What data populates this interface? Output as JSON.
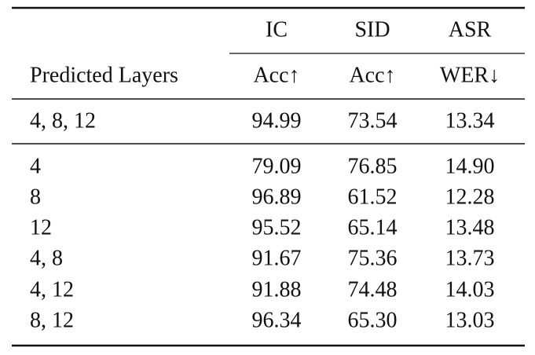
{
  "table": {
    "header": {
      "groups": [
        "IC",
        "SID",
        "ASR"
      ],
      "row_label": "Predicted Layers",
      "metrics": [
        "Acc↑",
        "Acc↑",
        "WER↓"
      ]
    },
    "rows": [
      [
        "4, 8, 12",
        "94.99",
        "73.54",
        "13.34"
      ],
      [
        "4",
        "79.09",
        "76.85",
        "14.90"
      ],
      [
        "8",
        "96.89",
        "61.52",
        "12.28"
      ],
      [
        "12",
        "95.52",
        "65.14",
        "13.48"
      ],
      [
        "4, 8",
        "91.67",
        "75.36",
        "13.73"
      ],
      [
        "4, 12",
        "91.88",
        "74.48",
        "14.03"
      ],
      [
        "8, 12",
        "96.34",
        "65.30",
        "13.03"
      ]
    ]
  }
}
